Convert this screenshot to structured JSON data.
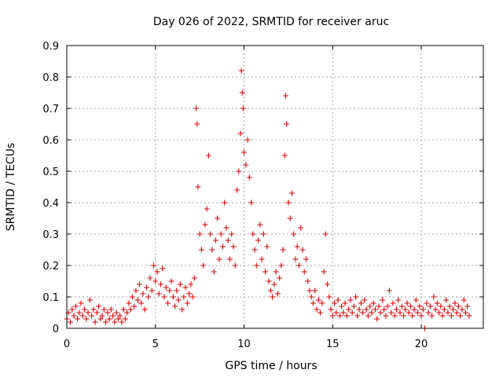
{
  "chart_data": {
    "type": "scatter",
    "title": "Day 026 of 2022, SRMTID for receiver aruc",
    "xlabel": "GPS time / hours",
    "ylabel": "SRMTID / TECUs",
    "xlim": [
      0,
      23.5
    ],
    "ylim": [
      0,
      0.9
    ],
    "xticks": [
      0,
      5,
      10,
      15,
      20
    ],
    "xtick_labels": [
      "0",
      "5",
      "10",
      "15",
      "20"
    ],
    "yticks": [
      0,
      0.1,
      0.2,
      0.3,
      0.4,
      0.5,
      0.6,
      0.7,
      0.8,
      0.9
    ],
    "ytick_labels": [
      "0",
      "0.1",
      "0.2",
      "0.3",
      "0.4",
      "0.5",
      "0.6",
      "0.7",
      "0.8",
      "0.9"
    ],
    "grid": true,
    "marker": "plus",
    "color": "#e00000",
    "series": [
      {
        "name": "SRMTID",
        "points": [
          [
            0.0,
            0.03
          ],
          [
            0.1,
            0.05
          ],
          [
            0.2,
            0.02
          ],
          [
            0.3,
            0.06
          ],
          [
            0.4,
            0.04
          ],
          [
            0.5,
            0.07
          ],
          [
            0.6,
            0.03
          ],
          [
            0.7,
            0.05
          ],
          [
            0.8,
            0.08
          ],
          [
            0.9,
            0.04
          ],
          [
            1.0,
            0.06
          ],
          [
            1.1,
            0.03
          ],
          [
            1.2,
            0.05
          ],
          [
            1.3,
            0.09
          ],
          [
            1.4,
            0.04
          ],
          [
            1.5,
            0.06
          ],
          [
            1.6,
            0.02
          ],
          [
            1.7,
            0.05
          ],
          [
            1.8,
            0.07
          ],
          [
            1.9,
            0.03
          ],
          [
            2.0,
            0.04
          ],
          [
            2.1,
            0.06
          ],
          [
            2.2,
            0.02
          ],
          [
            2.3,
            0.05
          ],
          [
            2.4,
            0.03
          ],
          [
            2.5,
            0.06
          ],
          [
            2.6,
            0.04
          ],
          [
            2.7,
            0.02
          ],
          [
            2.8,
            0.05
          ],
          [
            2.9,
            0.03
          ],
          [
            3.0,
            0.04
          ],
          [
            3.1,
            0.02
          ],
          [
            3.2,
            0.06
          ],
          [
            3.3,
            0.03
          ],
          [
            3.4,
            0.05
          ],
          [
            3.5,
            0.08
          ],
          [
            3.6,
            0.06
          ],
          [
            3.7,
            0.1
          ],
          [
            3.8,
            0.07
          ],
          [
            3.9,
            0.12
          ],
          [
            4.0,
            0.09
          ],
          [
            4.1,
            0.14
          ],
          [
            4.2,
            0.08
          ],
          [
            4.3,
            0.11
          ],
          [
            4.4,
            0.06
          ],
          [
            4.5,
            0.13
          ],
          [
            4.6,
            0.1
          ],
          [
            4.7,
            0.16
          ],
          [
            4.8,
            0.12
          ],
          [
            4.9,
            0.2
          ],
          [
            5.0,
            0.15
          ],
          [
            5.1,
            0.18
          ],
          [
            5.2,
            0.11
          ],
          [
            5.3,
            0.14
          ],
          [
            5.4,
            0.19
          ],
          [
            5.5,
            0.1
          ],
          [
            5.6,
            0.13
          ],
          [
            5.7,
            0.08
          ],
          [
            5.8,
            0.12
          ],
          [
            5.9,
            0.15
          ],
          [
            6.0,
            0.1
          ],
          [
            6.1,
            0.07
          ],
          [
            6.2,
            0.12
          ],
          [
            6.3,
            0.09
          ],
          [
            6.4,
            0.14
          ],
          [
            6.5,
            0.06
          ],
          [
            6.6,
            0.1
          ],
          [
            6.7,
            0.13
          ],
          [
            6.8,
            0.08
          ],
          [
            6.9,
            0.11
          ],
          [
            7.0,
            0.14
          ],
          [
            7.1,
            0.1
          ],
          [
            7.2,
            0.16
          ],
          [
            7.3,
            0.7
          ],
          [
            7.35,
            0.65
          ],
          [
            7.4,
            0.45
          ],
          [
            7.5,
            0.3
          ],
          [
            7.6,
            0.25
          ],
          [
            7.7,
            0.2
          ],
          [
            7.8,
            0.33
          ],
          [
            7.9,
            0.38
          ],
          [
            8.0,
            0.55
          ],
          [
            8.1,
            0.3
          ],
          [
            8.2,
            0.25
          ],
          [
            8.3,
            0.18
          ],
          [
            8.4,
            0.28
          ],
          [
            8.5,
            0.35
          ],
          [
            8.6,
            0.22
          ],
          [
            8.7,
            0.3
          ],
          [
            8.8,
            0.26
          ],
          [
            8.9,
            0.4
          ],
          [
            9.0,
            0.32
          ],
          [
            9.1,
            0.28
          ],
          [
            9.2,
            0.22
          ],
          [
            9.3,
            0.3
          ],
          [
            9.4,
            0.26
          ],
          [
            9.5,
            0.2
          ],
          [
            9.6,
            0.44
          ],
          [
            9.7,
            0.5
          ],
          [
            9.8,
            0.62
          ],
          [
            9.85,
            0.82
          ],
          [
            9.9,
            0.75
          ],
          [
            9.95,
            0.7
          ],
          [
            10.0,
            0.56
          ],
          [
            10.1,
            0.52
          ],
          [
            10.2,
            0.6
          ],
          [
            10.3,
            0.48
          ],
          [
            10.4,
            0.4
          ],
          [
            10.5,
            0.3
          ],
          [
            10.6,
            0.25
          ],
          [
            10.7,
            0.2
          ],
          [
            10.8,
            0.28
          ],
          [
            10.9,
            0.33
          ],
          [
            11.0,
            0.22
          ],
          [
            11.1,
            0.3
          ],
          [
            11.2,
            0.18
          ],
          [
            11.3,
            0.26
          ],
          [
            11.4,
            0.15
          ],
          [
            11.5,
            0.12
          ],
          [
            11.6,
            0.1
          ],
          [
            11.7,
            0.14
          ],
          [
            11.8,
            0.18
          ],
          [
            11.9,
            0.11
          ],
          [
            12.0,
            0.16
          ],
          [
            12.1,
            0.2
          ],
          [
            12.2,
            0.25
          ],
          [
            12.3,
            0.55
          ],
          [
            12.35,
            0.74
          ],
          [
            12.4,
            0.65
          ],
          [
            12.5,
            0.4
          ],
          [
            12.6,
            0.35
          ],
          [
            12.7,
            0.43
          ],
          [
            12.8,
            0.3
          ],
          [
            12.9,
            0.22
          ],
          [
            13.0,
            0.26
          ],
          [
            13.1,
            0.2
          ],
          [
            13.2,
            0.32
          ],
          [
            13.3,
            0.25
          ],
          [
            13.4,
            0.18
          ],
          [
            13.5,
            0.22
          ],
          [
            13.6,
            0.15
          ],
          [
            13.7,
            0.12
          ],
          [
            13.8,
            0.1
          ],
          [
            13.9,
            0.08
          ],
          [
            14.0,
            0.12
          ],
          [
            14.1,
            0.06
          ],
          [
            14.2,
            0.09
          ],
          [
            14.3,
            0.05
          ],
          [
            14.4,
            0.08
          ],
          [
            14.5,
            0.18
          ],
          [
            14.6,
            0.3
          ],
          [
            14.7,
            0.14
          ],
          [
            14.8,
            0.1
          ],
          [
            14.9,
            0.06
          ],
          [
            15.0,
            0.04
          ],
          [
            15.1,
            0.08
          ],
          [
            15.2,
            0.05
          ],
          [
            15.3,
            0.09
          ],
          [
            15.4,
            0.04
          ],
          [
            15.5,
            0.07
          ],
          [
            15.6,
            0.05
          ],
          [
            15.7,
            0.08
          ],
          [
            15.8,
            0.04
          ],
          [
            15.9,
            0.06
          ],
          [
            16.0,
            0.09
          ],
          [
            16.1,
            0.05
          ],
          [
            16.2,
            0.07
          ],
          [
            16.3,
            0.1
          ],
          [
            16.4,
            0.04
          ],
          [
            16.5,
            0.06
          ],
          [
            16.6,
            0.08
          ],
          [
            16.7,
            0.05
          ],
          [
            16.8,
            0.09
          ],
          [
            16.9,
            0.06
          ],
          [
            17.0,
            0.04
          ],
          [
            17.1,
            0.07
          ],
          [
            17.2,
            0.05
          ],
          [
            17.3,
            0.08
          ],
          [
            17.4,
            0.06
          ],
          [
            17.5,
            0.03
          ],
          [
            17.6,
            0.07
          ],
          [
            17.7,
            0.05
          ],
          [
            17.8,
            0.09
          ],
          [
            17.9,
            0.06
          ],
          [
            18.0,
            0.04
          ],
          [
            18.1,
            0.07
          ],
          [
            18.2,
            0.12
          ],
          [
            18.3,
            0.05
          ],
          [
            18.4,
            0.08
          ],
          [
            18.5,
            0.04
          ],
          [
            18.6,
            0.06
          ],
          [
            18.7,
            0.09
          ],
          [
            18.8,
            0.05
          ],
          [
            18.9,
            0.07
          ],
          [
            19.0,
            0.04
          ],
          [
            19.1,
            0.06
          ],
          [
            19.2,
            0.08
          ],
          [
            19.3,
            0.05
          ],
          [
            19.4,
            0.07
          ],
          [
            19.5,
            0.04
          ],
          [
            19.6,
            0.06
          ],
          [
            19.7,
            0.09
          ],
          [
            19.8,
            0.05
          ],
          [
            19.9,
            0.07
          ],
          [
            20.0,
            0.04
          ],
          [
            20.1,
            0.06
          ],
          [
            20.2,
            0.0
          ],
          [
            20.3,
            0.08
          ],
          [
            20.4,
            0.05
          ],
          [
            20.5,
            0.07
          ],
          [
            20.6,
            0.04
          ],
          [
            20.7,
            0.1
          ],
          [
            20.8,
            0.06
          ],
          [
            20.9,
            0.08
          ],
          [
            21.0,
            0.05
          ],
          [
            21.1,
            0.07
          ],
          [
            21.2,
            0.04
          ],
          [
            21.3,
            0.06
          ],
          [
            21.4,
            0.09
          ],
          [
            21.5,
            0.05
          ],
          [
            21.6,
            0.07
          ],
          [
            21.7,
            0.04
          ],
          [
            21.8,
            0.06
          ],
          [
            21.9,
            0.08
          ],
          [
            22.0,
            0.05
          ],
          [
            22.1,
            0.07
          ],
          [
            22.2,
            0.04
          ],
          [
            22.3,
            0.06
          ],
          [
            22.4,
            0.09
          ],
          [
            22.5,
            0.05
          ],
          [
            22.6,
            0.07
          ],
          [
            22.7,
            0.04
          ]
        ]
      }
    ]
  }
}
